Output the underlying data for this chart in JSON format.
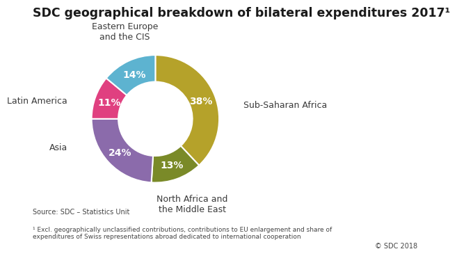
{
  "title": "SDC geographical breakdown of bilateral expenditures 2017¹",
  "segments": [
    {
      "label": "Sub-Saharan Africa",
      "value": 38,
      "color": "#b5a22a"
    },
    {
      "label": "North Africa and\nthe Middle East",
      "value": 13,
      "color": "#7a8a28"
    },
    {
      "label": "Asia",
      "value": 24,
      "color": "#8b6bab"
    },
    {
      "label": "Latin America",
      "value": 11,
      "color": "#e04080"
    },
    {
      "label": "Eastern Europe\nand the CIS",
      "value": 14,
      "color": "#5db3d0"
    }
  ],
  "source_text": "Source: SDC – Statistics Unit",
  "footnote_text": "¹ Excl. geographically unclassified contributions, contributions to EU enlargement and share of\nexpenditures of Swiss representations abroad dedicated to international cooperation",
  "copyright_text": "© SDC 2018",
  "background_color": "#ffffff",
  "label_color": "#ffffff",
  "outer_label_color": "#3a3a3a",
  "title_fontsize": 12.5,
  "label_fontsize": 10,
  "outer_label_fontsize": 9
}
